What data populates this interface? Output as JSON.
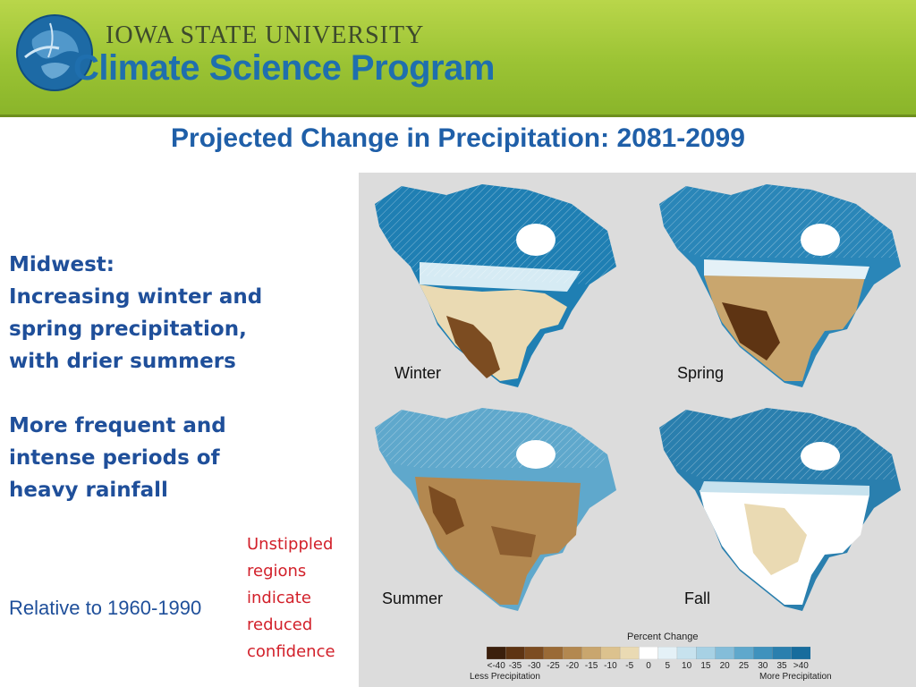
{
  "header": {
    "university": "IOWA STATE UNIVERSITY",
    "program": "Climate Science Program"
  },
  "slide": {
    "title": "Projected Change in Precipitation: 2081-2099",
    "bullets": [
      "Midwest:",
      "Increasing winter and spring precipitation, with drier summers",
      "More frequent and intense periods of heavy rainfall"
    ],
    "relative_note": "Relative to 1960-1990",
    "stipple_note": "Unstippled regions indicate reduced confidence"
  },
  "figure": {
    "seasons": [
      "Winter",
      "Spring",
      "Summer",
      "Fall"
    ],
    "legend_title": "Percent Change",
    "legend_labels": [
      "<-40",
      "-35",
      "-30",
      "-25",
      "-20",
      "-15",
      "-10",
      "-5",
      "0",
      "5",
      "10",
      "15",
      "20",
      "25",
      "30",
      "35",
      ">40"
    ],
    "legend_colors": [
      "#3b1f0c",
      "#5e3413",
      "#7c4c21",
      "#9a6a36",
      "#b38850",
      "#c9a66e",
      "#dcc28e",
      "#eadab3",
      "#ffffff",
      "#e4f1f7",
      "#c7e2ee",
      "#a7d1e4",
      "#84bdd9",
      "#5fa8cc",
      "#3f92bd",
      "#2a7fae",
      "#176c9d"
    ],
    "less_label": "Less Precipitation",
    "more_label": "More Precipitation"
  }
}
